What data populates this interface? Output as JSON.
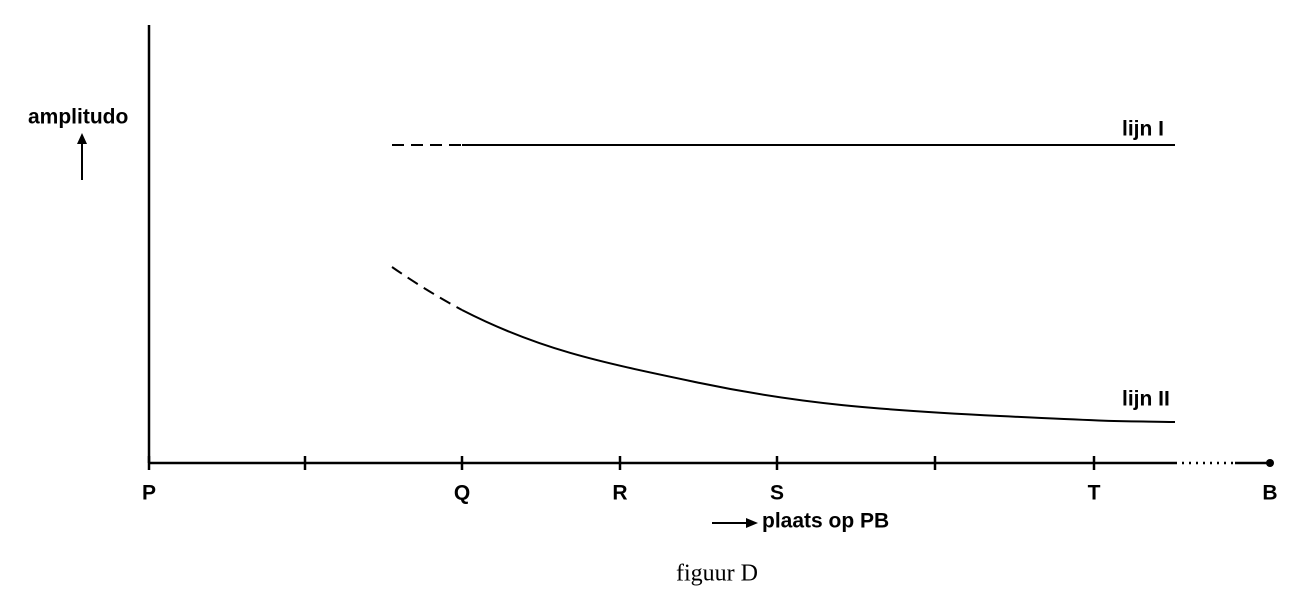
{
  "axis": {
    "y_label": "amplitudo",
    "x_label": "plaats op PB",
    "points": [
      "P",
      "Q",
      "R",
      "S",
      "T",
      "B"
    ]
  },
  "lines": [
    {
      "label": "lijn I"
    },
    {
      "label": "lijn II"
    }
  ],
  "caption": "figuur D"
}
